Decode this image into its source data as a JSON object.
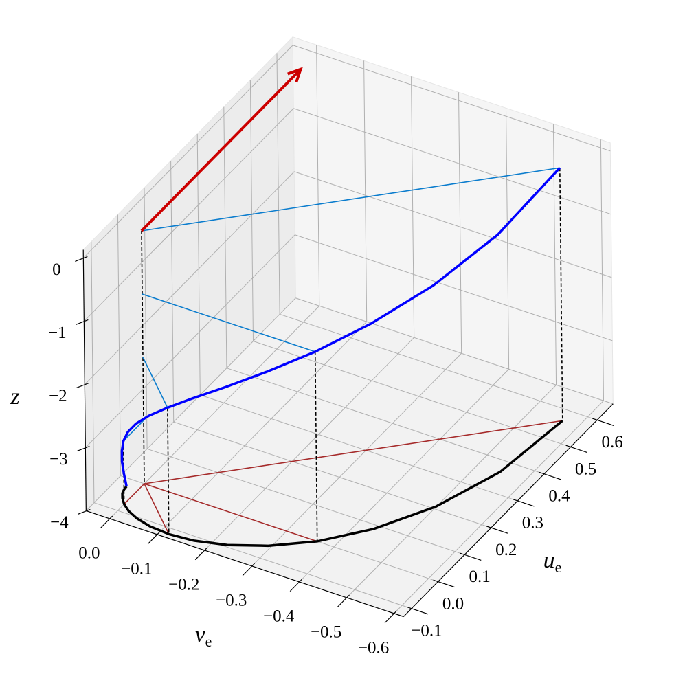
{
  "chart_data": {
    "type": "line3d",
    "xlabel": "u",
    "xlabel_sub": "e",
    "ylabel": "v",
    "ylabel_sub": "e",
    "zlabel": "z",
    "z": [
      0,
      -0.25,
      -0.5,
      -0.75,
      -1,
      -1.25,
      -1.5,
      -1.75,
      -2,
      -2.25,
      -2.5,
      -2.75,
      -3,
      -3.25,
      -3.5,
      -3.75,
      -4
    ],
    "u": [
      0.566,
      0.365,
      0.207,
      0.087,
      0,
      -0.058,
      -0.094,
      -0.113,
      -0.118,
      -0.114,
      -0.104,
      -0.091,
      -0.076,
      -0.061,
      -0.047,
      -0.035,
      -0.024
    ],
    "v": [
      -0.566,
      -0.547,
      -0.499,
      -0.435,
      -0.365,
      -0.294,
      -0.228,
      -0.168,
      -0.118,
      -0.076,
      -0.043,
      -0.018,
      0,
      0.012,
      0.02,
      0.023,
      0.024
    ],
    "levels": [
      0,
      -1,
      -2,
      -3
    ],
    "wind": {
      "u": 0.6,
      "v": 0,
      "z": 0,
      "color": "#cc0000"
    },
    "colors": {
      "spiral": "#0000ff",
      "floor": "#000000",
      "level": "#0a7ccd",
      "floor_ray": "#a52a2a"
    },
    "xlim": [
      -0.13,
      0.66
    ],
    "ylim": [
      -0.62,
      0.05
    ],
    "zlim": [
      -4,
      0.13
    ],
    "xticks": [
      {
        "value": -0.1,
        "label": "−0.1"
      },
      {
        "value": 0,
        "label": "0.0"
      },
      {
        "value": 0.1,
        "label": "0.1"
      },
      {
        "value": 0.2,
        "label": "0.2"
      },
      {
        "value": 0.3,
        "label": "0.3"
      },
      {
        "value": 0.4,
        "label": "0.4"
      },
      {
        "value": 0.5,
        "label": "0.5"
      },
      {
        "value": 0.6,
        "label": "0.6"
      }
    ],
    "yticks": [
      {
        "value": 0,
        "label": "0.0"
      },
      {
        "value": -0.1,
        "label": "−0.1"
      },
      {
        "value": -0.2,
        "label": "−0.2"
      },
      {
        "value": -0.3,
        "label": "−0.3"
      },
      {
        "value": -0.4,
        "label": "−0.4"
      },
      {
        "value": -0.5,
        "label": "−0.5"
      },
      {
        "value": -0.6,
        "label": "−0.6"
      }
    ],
    "zticks": [
      0,
      {
        "value": -1,
        "label": "−1"
      },
      {
        "value": -2,
        "label": "−2"
      },
      {
        "value": -3,
        "label": "−3"
      },
      {
        "value": -4,
        "label": "−4"
      }
    ],
    "grid": true
  }
}
